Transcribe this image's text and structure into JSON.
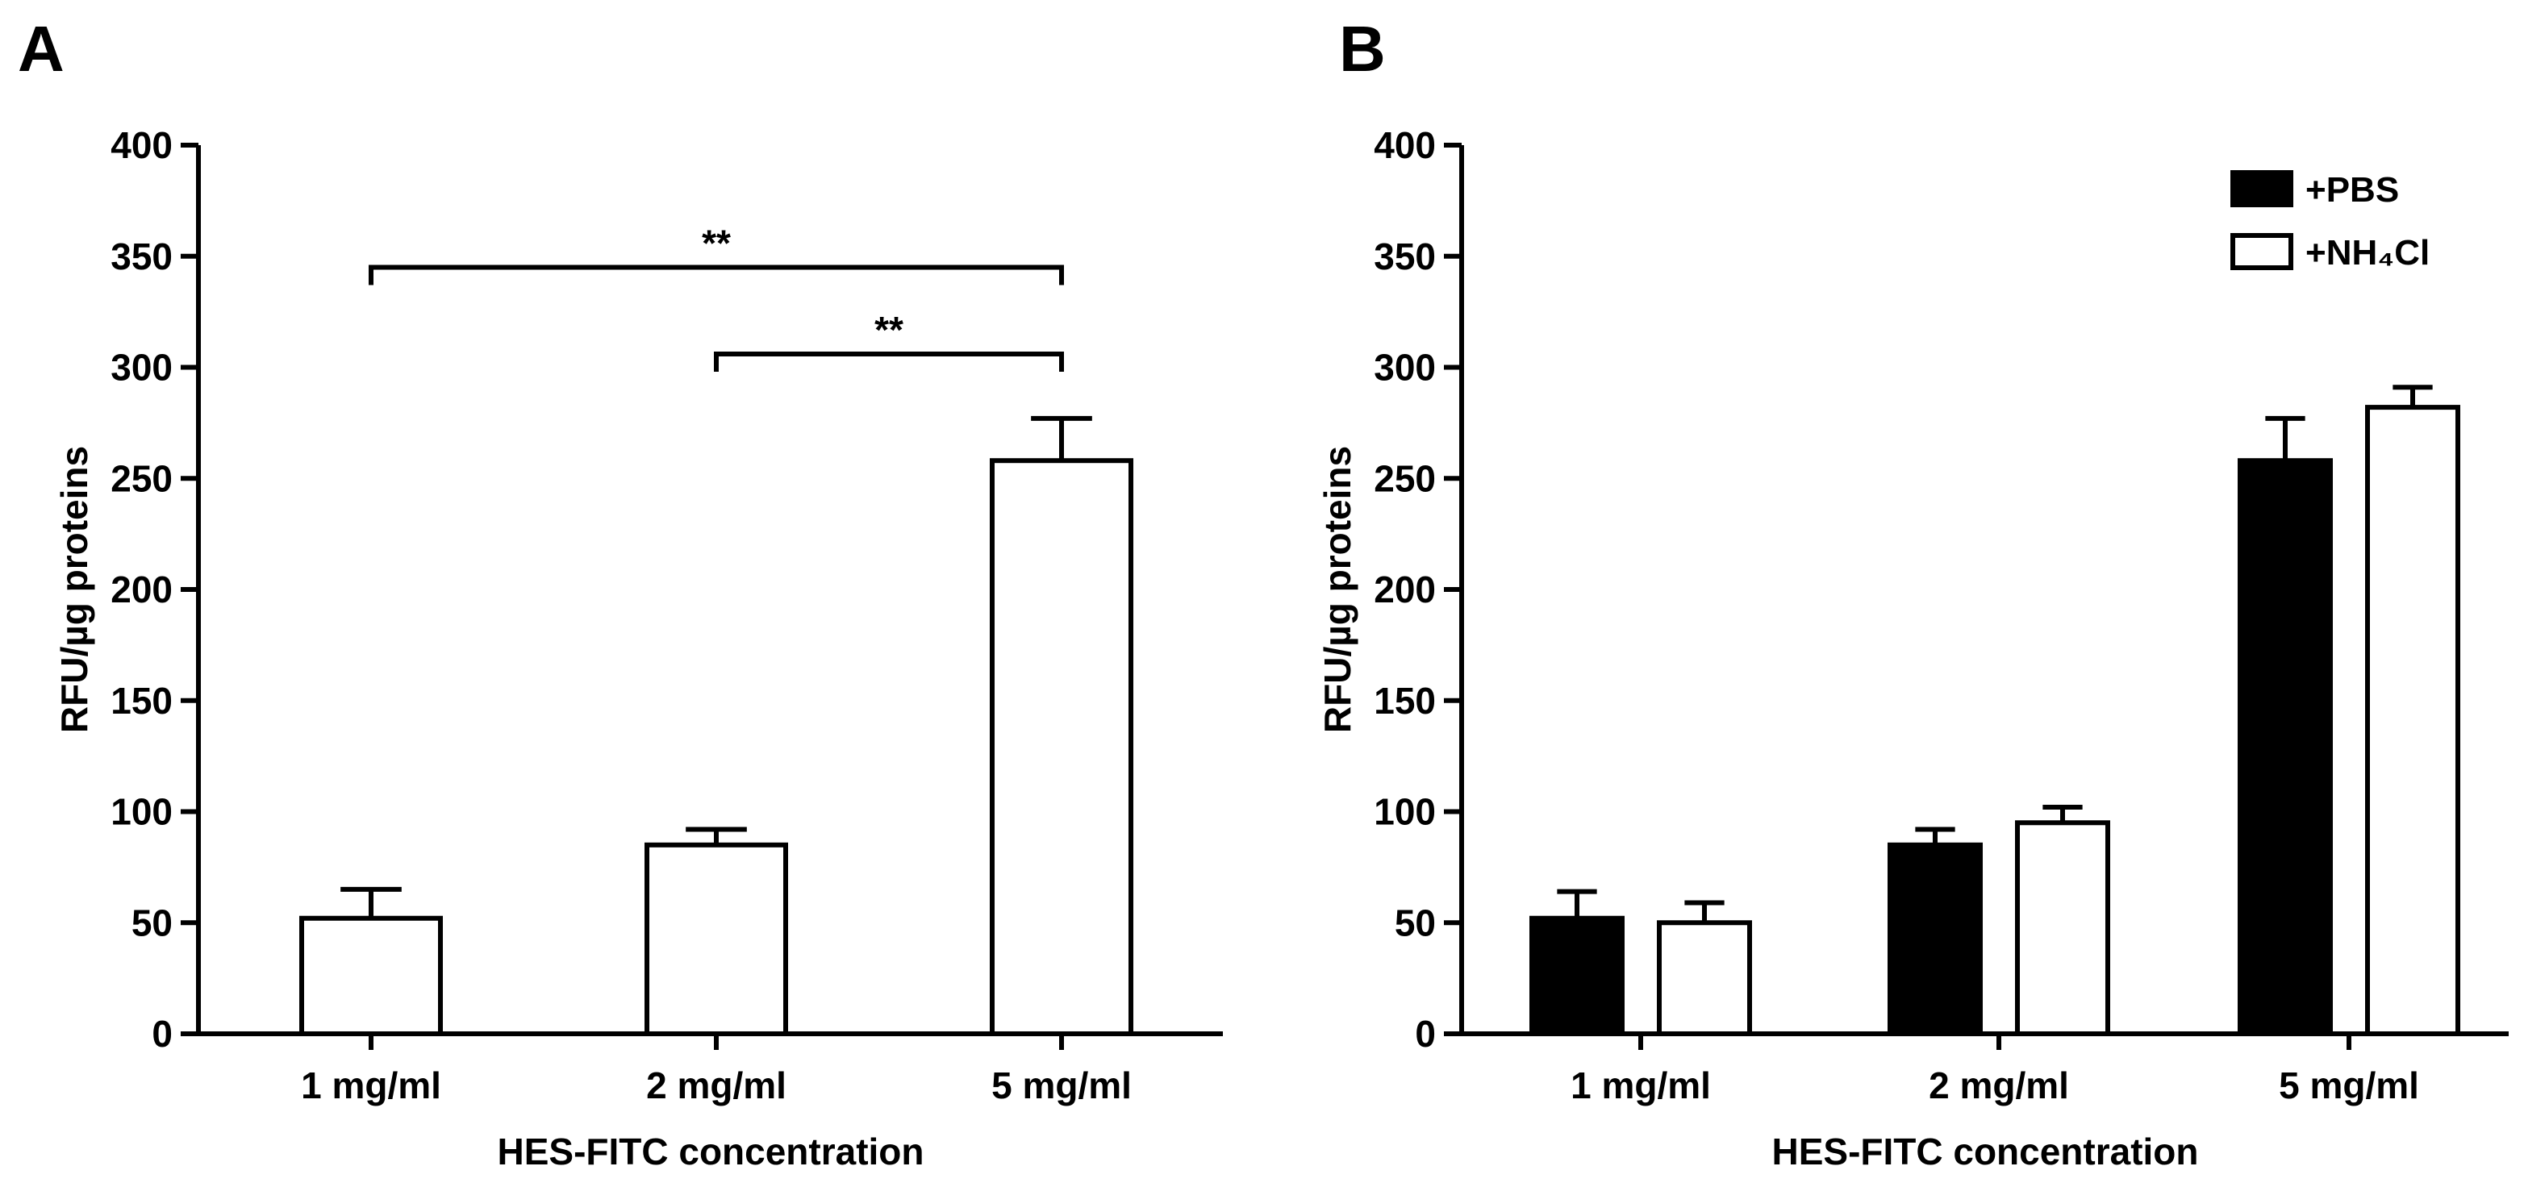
{
  "chart_data": [
    {
      "panel_letter": "A",
      "type": "bar",
      "categories": [
        "1 mg/ml",
        "2 mg/ml",
        "5 mg/ml"
      ],
      "series": [
        {
          "values": [
            52,
            85,
            258
          ],
          "errors": [
            13,
            7,
            19
          ],
          "color": "#ffffff"
        }
      ],
      "xlabel": "HES-FITC concentration",
      "ylabel": "RFU/µg proteins",
      "ylim": [
        0,
        400
      ],
      "yticks": [
        0,
        50,
        100,
        150,
        200,
        250,
        300,
        350,
        400
      ],
      "annotations": [
        {
          "from": "1 mg/ml",
          "to": "5 mg/ml",
          "value": 345,
          "label": "**"
        },
        {
          "from": "2 mg/ml",
          "to": "5 mg/ml",
          "value": 306,
          "label": "**"
        }
      ],
      "grid": false
    },
    {
      "panel_letter": "B",
      "type": "bar",
      "categories": [
        "1 mg/ml",
        "2 mg/ml",
        "5 mg/ml"
      ],
      "series": [
        {
          "name": "+PBS",
          "values": [
            52,
            85,
            258
          ],
          "errors": [
            12,
            7,
            19
          ],
          "color": "#000000"
        },
        {
          "name": "+NH₄Cl",
          "values": [
            50,
            95,
            282
          ],
          "errors": [
            9,
            7,
            9
          ],
          "color": "#ffffff"
        }
      ],
      "xlabel": "HES-FITC concentration",
      "ylabel": "RFU/µg proteins",
      "ylim": [
        0,
        400
      ],
      "yticks": [
        0,
        50,
        100,
        150,
        200,
        250,
        300,
        350,
        400
      ],
      "legend": "top-right",
      "grid": false
    }
  ]
}
